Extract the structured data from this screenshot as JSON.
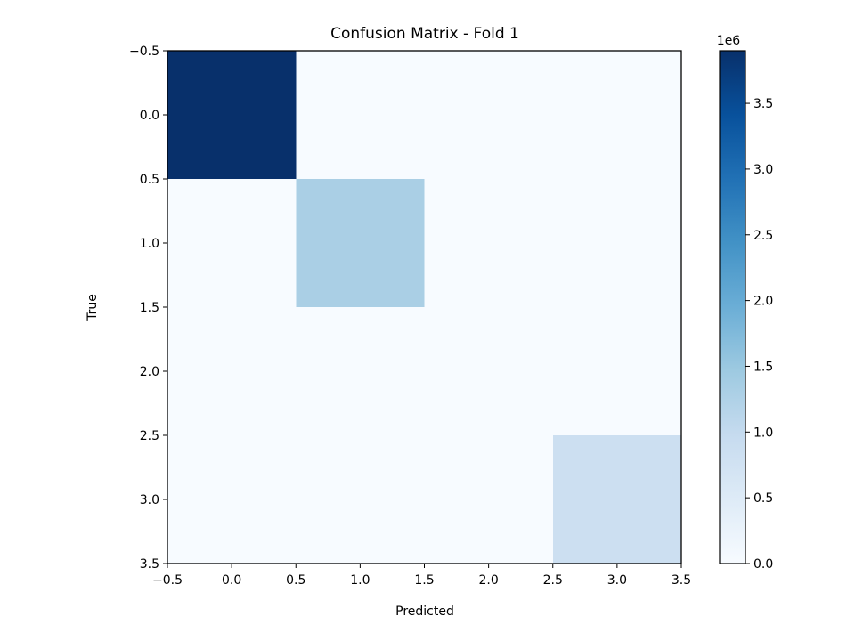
{
  "chart_data": {
    "type": "heatmap",
    "title": "Confusion Matrix - Fold 1",
    "xlabel": "Predicted",
    "ylabel": "True",
    "x_ticks": [
      "−0.5",
      "0.0",
      "0.5",
      "1.0",
      "1.5",
      "2.0",
      "2.5",
      "3.0",
      "3.5"
    ],
    "y_ticks": [
      "−0.5",
      "0.0",
      "0.5",
      "1.0",
      "1.5",
      "2.0",
      "2.5",
      "3.0",
      "3.5"
    ],
    "xlim": [
      -0.5,
      3.5
    ],
    "ylim": [
      3.5,
      -0.5
    ],
    "matrix": [
      [
        3900000,
        0,
        0,
        0
      ],
      [
        0,
        1320000,
        0,
        0
      ],
      [
        0,
        0,
        0,
        0
      ],
      [
        0,
        0,
        0,
        860000
      ]
    ],
    "colorbar": {
      "colormap": "Blues",
      "min": 0,
      "max": 3900000,
      "ticks": [
        0,
        500000,
        1000000,
        1500000,
        2000000,
        2500000,
        3000000,
        3500000
      ],
      "tick_labels": [
        "0.0",
        "0.5",
        "1.0",
        "1.5",
        "2.0",
        "2.5",
        "3.0",
        "3.5"
      ],
      "offset_label": "1e6"
    },
    "grid": false
  }
}
